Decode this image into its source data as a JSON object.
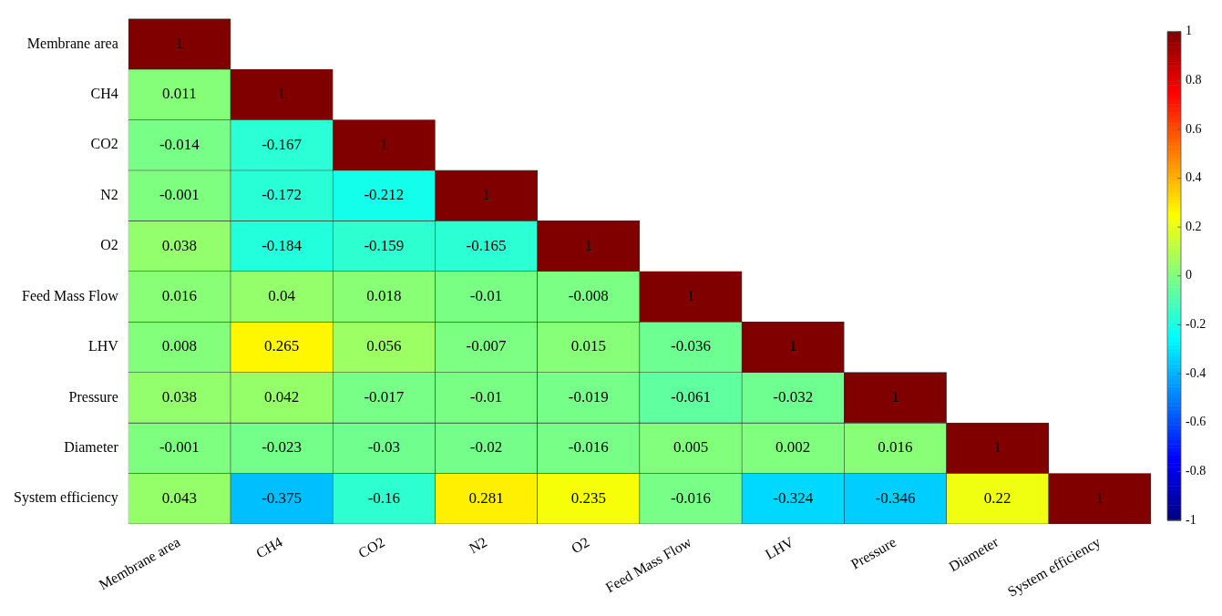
{
  "chart_data": {
    "type": "heatmap",
    "categories": [
      "Membrane area",
      "CH4",
      "CO2",
      "N2",
      "O2",
      "Feed Mass Flow",
      "LHV",
      "Pressure",
      "Diameter",
      "System efficiency"
    ],
    "y_categories": [
      "Membrane area",
      "CH4",
      "CO2",
      "N2",
      "O2",
      "Feed Mass Flow",
      "LHV",
      "Pressure",
      "Diameter",
      "System efficiency"
    ],
    "cells": [
      [
        1,
        null,
        null,
        null,
        null,
        null,
        null,
        null,
        null,
        null
      ],
      [
        0.011,
        1,
        null,
        null,
        null,
        null,
        null,
        null,
        null,
        null
      ],
      [
        -0.014,
        -0.167,
        1,
        null,
        null,
        null,
        null,
        null,
        null,
        null
      ],
      [
        -0.001,
        -0.172,
        -0.212,
        1,
        null,
        null,
        null,
        null,
        null,
        null
      ],
      [
        0.038,
        -0.184,
        -0.159,
        -0.165,
        1,
        null,
        null,
        null,
        null,
        null
      ],
      [
        0.016,
        0.04,
        0.018,
        -0.01,
        -0.008,
        1,
        null,
        null,
        null,
        null
      ],
      [
        0.008,
        0.265,
        0.056,
        -0.007,
        0.015,
        -0.036,
        1,
        null,
        null,
        null
      ],
      [
        0.038,
        0.042,
        -0.017,
        -0.01,
        -0.019,
        -0.061,
        -0.032,
        1,
        null,
        null
      ],
      [
        -0.001,
        -0.023,
        -0.03,
        -0.02,
        -0.016,
        0.005,
        0.002,
        0.016,
        1,
        null
      ],
      [
        0.043,
        -0.375,
        -0.16,
        0.281,
        0.235,
        -0.016,
        -0.324,
        -0.346,
        0.22,
        1
      ]
    ],
    "clim": [
      -1,
      1
    ],
    "cticks": [
      -1,
      -0.8,
      -0.6,
      -0.4,
      -0.2,
      0,
      0.2,
      0.4,
      0.6,
      0.8,
      1
    ],
    "data_labels": true
  }
}
